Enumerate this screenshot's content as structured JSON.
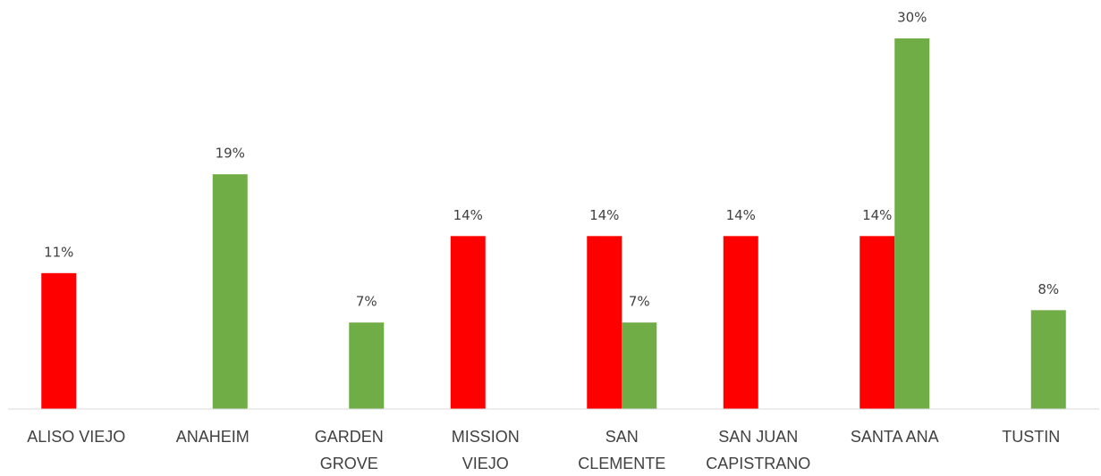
{
  "chart_data": {
    "type": "bar",
    "categories": [
      [
        "ALISO VIEJO"
      ],
      [
        "ANAHEIM"
      ],
      [
        "GARDEN",
        "GROVE"
      ],
      [
        "MISSION",
        "VIEJO"
      ],
      [
        "SAN",
        "CLEMENTE"
      ],
      [
        "SAN JUAN",
        "CAPISTRANO"
      ],
      [
        "SANTA ANA"
      ],
      [
        "TUSTIN"
      ]
    ],
    "series": [
      {
        "color": "#ff0000",
        "values": [
          11,
          null,
          null,
          14,
          14,
          14,
          14,
          null
        ],
        "value_labels": [
          "11%",
          null,
          null,
          "14%",
          "14%",
          "14%",
          "14%",
          null
        ]
      },
      {
        "color": "#70ad47",
        "values": [
          null,
          19,
          7,
          null,
          7,
          null,
          30,
          8
        ],
        "value_labels": [
          null,
          "19%",
          "7%",
          null,
          "7%",
          null,
          "30%",
          "8%"
        ]
      }
    ],
    "ylim": [
      0,
      30
    ]
  }
}
